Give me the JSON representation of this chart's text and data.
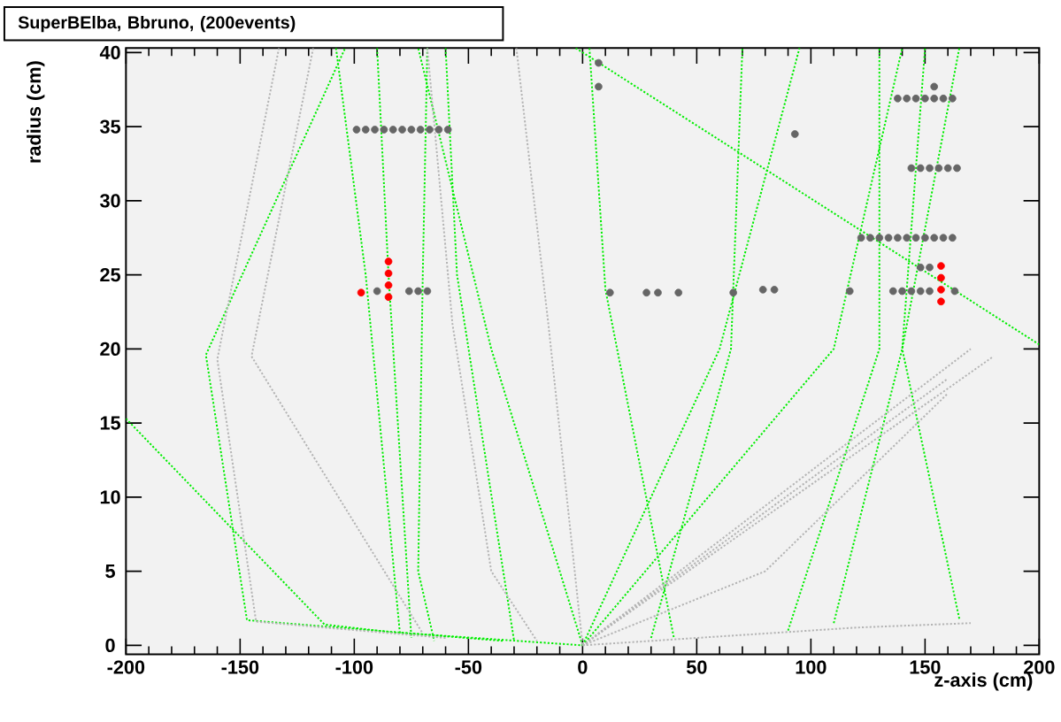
{
  "chart_data": {
    "type": "scatter",
    "title": "SuperBElba, Bbruno, (200events)",
    "xlabel": "z-axis (cm)",
    "ylabel": "radius (cm)",
    "xlim": [
      -200,
      200
    ],
    "ylim": [
      -0.6,
      40.3
    ],
    "xticks": [
      -200,
      -150,
      -100,
      -50,
      0,
      50,
      100,
      150,
      200
    ],
    "yticks": [
      0,
      5,
      10,
      15,
      20,
      25,
      30,
      35,
      40
    ],
    "grid": false,
    "series": [
      {
        "type": "line",
        "color": "#00ee00",
        "line_style": "dotted",
        "marker": "none",
        "x": [
          -35,
          -147,
          -165,
          -104
        ],
        "values": [
          0.3,
          1.7,
          19.6,
          40.3
        ]
      },
      {
        "type": "line",
        "color": "#00ee00",
        "line_style": "dotted",
        "marker": "none",
        "x": [
          -200,
          -113,
          -85,
          0
        ],
        "values": [
          15.3,
          1.4,
          0.9,
          0
        ]
      },
      {
        "type": "line",
        "color": "#00ee00",
        "line_style": "dotted",
        "marker": "none",
        "x": [
          -108,
          -95,
          -80
        ],
        "values": [
          40.3,
          25,
          0.8
        ]
      },
      {
        "type": "line",
        "color": "#00ee00",
        "line_style": "dotted",
        "marker": "none",
        "x": [
          -90,
          -85,
          -75
        ],
        "values": [
          40.3,
          25,
          0.5
        ]
      },
      {
        "type": "line",
        "color": "#00ee00",
        "line_style": "dotted",
        "marker": "none",
        "x": [
          -68,
          -70,
          -72,
          -65
        ],
        "values": [
          40.3,
          25,
          5,
          0.3
        ]
      },
      {
        "type": "line",
        "color": "#00ee00",
        "line_style": "dotted",
        "marker": "none",
        "x": [
          -60,
          -55,
          -30
        ],
        "values": [
          40.3,
          25,
          0.3
        ]
      },
      {
        "type": "line",
        "color": "#00ee00",
        "line_style": "dotted",
        "marker": "none",
        "x": [
          0,
          -40,
          -72
        ],
        "values": [
          0,
          20,
          40.3
        ]
      },
      {
        "type": "line",
        "color": "#00ee00",
        "line_style": "dotted",
        "marker": "none",
        "x": [
          3,
          10,
          40
        ],
        "values": [
          40.3,
          24,
          0.5
        ]
      },
      {
        "type": "line",
        "color": "#00ee00",
        "line_style": "dotted",
        "marker": "none",
        "x": [
          -3,
          200
        ],
        "values": [
          40.3,
          20.3
        ]
      },
      {
        "type": "line",
        "color": "#00ee00",
        "line_style": "dotted",
        "marker": "none",
        "x": [
          0,
          60,
          95
        ],
        "values": [
          0,
          20,
          40.3
        ]
      },
      {
        "type": "line",
        "color": "#00ee00",
        "line_style": "dotted",
        "marker": "none",
        "x": [
          0,
          110,
          140
        ],
        "values": [
          0,
          20,
          40.3
        ]
      },
      {
        "type": "line",
        "color": "#00ee00",
        "line_style": "dotted",
        "marker": "none",
        "x": [
          110,
          140,
          165
        ],
        "values": [
          1.5,
          20,
          40.3
        ]
      },
      {
        "type": "line",
        "color": "#00ee00",
        "line_style": "dotted",
        "marker": "none",
        "x": [
          165,
          140,
          150
        ],
        "values": [
          1.8,
          20,
          40.3
        ]
      },
      {
        "type": "line",
        "color": "#00ee00",
        "line_style": "dotted",
        "marker": "none",
        "x": [
          30,
          65,
          70
        ],
        "values": [
          0.5,
          20,
          40.3
        ]
      },
      {
        "type": "line",
        "color": "#00ee00",
        "line_style": "dotted",
        "marker": "none",
        "x": [
          90,
          130,
          130
        ],
        "values": [
          1,
          20,
          40.3
        ]
      },
      {
        "type": "line",
        "color": "#b4b4b4",
        "line_style": "dotted",
        "marker": "none",
        "x": [
          -133,
          -160,
          -143,
          -60
        ],
        "values": [
          40.3,
          19.3,
          1.6,
          0.5
        ]
      },
      {
        "type": "line",
        "color": "#b4b4b4",
        "line_style": "dotted",
        "marker": "none",
        "x": [
          -118,
          -145,
          -70
        ],
        "values": [
          40.3,
          19.5,
          0.8
        ]
      },
      {
        "type": "line",
        "color": "#b4b4b4",
        "line_style": "dotted",
        "marker": "none",
        "x": [
          -68,
          -57,
          -40,
          -20
        ],
        "values": [
          40.3,
          21.7,
          5,
          0.3
        ]
      },
      {
        "type": "line",
        "color": "#b4b4b4",
        "line_style": "dotted",
        "marker": "none",
        "x": [
          -29,
          -15,
          0
        ],
        "values": [
          40.3,
          21.7,
          0
        ]
      },
      {
        "type": "line",
        "color": "#b4b4b4",
        "line_style": "dotted",
        "marker": "none",
        "x": [
          0,
          170
        ],
        "values": [
          0,
          20
        ]
      },
      {
        "type": "line",
        "color": "#b4b4b4",
        "line_style": "dotted",
        "marker": "none",
        "x": [
          0,
          160
        ],
        "values": [
          0,
          18
        ]
      },
      {
        "type": "line",
        "color": "#b4b4b4",
        "line_style": "dotted",
        "marker": "none",
        "x": [
          0,
          180
        ],
        "values": [
          0,
          19.5
        ]
      },
      {
        "type": "line",
        "color": "#b4b4b4",
        "line_style": "dotted",
        "marker": "none",
        "x": [
          0,
          120,
          170
        ],
        "values": [
          0,
          1.2,
          1.5
        ]
      },
      {
        "type": "line",
        "color": "#b4b4b4",
        "line_style": "dotted",
        "marker": "none",
        "x": [
          0,
          80,
          160
        ],
        "values": [
          0,
          5,
          17
        ]
      },
      {
        "type": "scatter",
        "color": "#666666",
        "x": [
          -99,
          -95,
          -91,
          -87,
          -83,
          -79,
          -75,
          -71,
          -67,
          -63,
          -59,
          7,
          7,
          93,
          138,
          142,
          146,
          150,
          154,
          158,
          162,
          154,
          144,
          148,
          152,
          156,
          160,
          164,
          122,
          126,
          130,
          134,
          138,
          142,
          146,
          150,
          154,
          158,
          162,
          148,
          152,
          136,
          140,
          144,
          148,
          152,
          163,
          117,
          -90,
          -76,
          -72,
          -68,
          12,
          28,
          33,
          42,
          66,
          79,
          84
        ],
        "values": [
          34.8,
          34.8,
          34.8,
          34.8,
          34.8,
          34.8,
          34.8,
          34.8,
          34.8,
          34.8,
          34.8,
          39.3,
          37.7,
          34.5,
          36.9,
          36.9,
          36.9,
          36.9,
          36.9,
          36.9,
          36.9,
          37.7,
          32.2,
          32.2,
          32.2,
          32.2,
          32.2,
          32.2,
          27.5,
          27.5,
          27.5,
          27.5,
          27.5,
          27.5,
          27.5,
          27.5,
          27.5,
          27.5,
          27.5,
          25.5,
          25.5,
          23.9,
          23.9,
          23.9,
          23.9,
          23.9,
          23.9,
          23.9,
          23.9,
          23.9,
          23.9,
          23.9,
          23.8,
          23.8,
          23.8,
          23.8,
          23.8,
          24.0,
          24.0
        ]
      },
      {
        "type": "scatter",
        "color": "#ff0000",
        "x": [
          -97,
          -85,
          -85,
          -85,
          -85,
          157,
          157,
          157,
          157
        ],
        "values": [
          23.8,
          23.5,
          24.3,
          25.1,
          25.9,
          23.2,
          24.0,
          24.8,
          25.6
        ]
      }
    ]
  }
}
